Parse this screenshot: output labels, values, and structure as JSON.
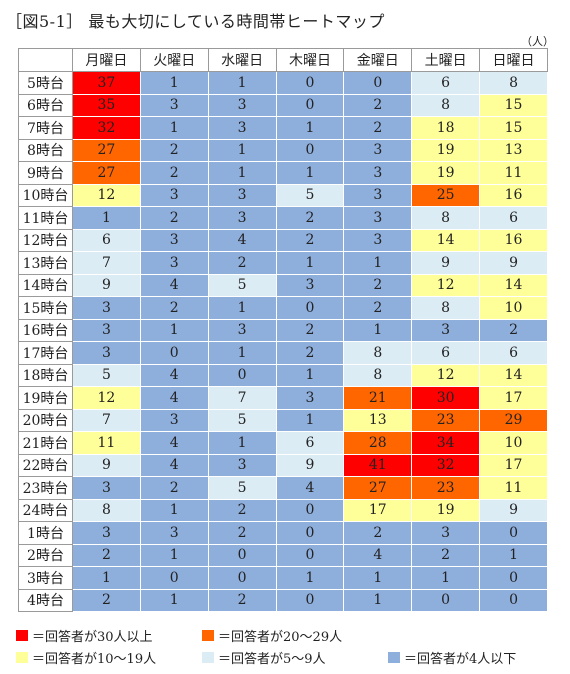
{
  "title": "［図5-1］ 最も大切にしている時間帯ヒートマップ",
  "unit": "（人）",
  "colors": {
    "red": "#ff0000",
    "orange": "#ff6600",
    "yellow": "#ffff99",
    "lightblue": "#dcecf4",
    "blue": "#8eaedc"
  },
  "chart_data": {
    "type": "heatmap",
    "columns": [
      "月曜日",
      "火曜日",
      "水曜日",
      "木曜日",
      "金曜日",
      "土曜日",
      "日曜日"
    ],
    "rows": [
      "5時台",
      "6時台",
      "7時台",
      "8時台",
      "9時台",
      "10時台",
      "11時台",
      "12時台",
      "13時台",
      "14時台",
      "15時台",
      "16時台",
      "17時台",
      "18時台",
      "19時台",
      "20時台",
      "21時台",
      "22時台",
      "23時台",
      "24時台",
      "1時台",
      "2時台",
      "3時台",
      "4時台"
    ],
    "values": [
      [
        37,
        1,
        1,
        0,
        0,
        6,
        8
      ],
      [
        35,
        3,
        3,
        0,
        2,
        8,
        15
      ],
      [
        32,
        1,
        3,
        1,
        2,
        18,
        15
      ],
      [
        27,
        2,
        1,
        0,
        3,
        19,
        13
      ],
      [
        27,
        2,
        1,
        1,
        3,
        19,
        11
      ],
      [
        12,
        3,
        3,
        5,
        3,
        25,
        16
      ],
      [
        1,
        2,
        3,
        2,
        3,
        8,
        6
      ],
      [
        6,
        3,
        4,
        2,
        3,
        14,
        16
      ],
      [
        7,
        3,
        2,
        1,
        1,
        9,
        9
      ],
      [
        9,
        4,
        5,
        3,
        2,
        12,
        14
      ],
      [
        3,
        2,
        1,
        0,
        2,
        8,
        10
      ],
      [
        3,
        1,
        3,
        2,
        1,
        3,
        2
      ],
      [
        3,
        0,
        1,
        2,
        8,
        6,
        6
      ],
      [
        5,
        4,
        0,
        1,
        8,
        12,
        14
      ],
      [
        12,
        4,
        7,
        3,
        21,
        30,
        17
      ],
      [
        7,
        3,
        5,
        1,
        13,
        23,
        29
      ],
      [
        11,
        4,
        1,
        6,
        28,
        34,
        10
      ],
      [
        9,
        4,
        3,
        9,
        41,
        32,
        17
      ],
      [
        3,
        2,
        5,
        4,
        27,
        23,
        11
      ],
      [
        8,
        1,
        2,
        0,
        17,
        19,
        9
      ],
      [
        3,
        3,
        2,
        0,
        2,
        3,
        0
      ],
      [
        2,
        1,
        0,
        0,
        4,
        2,
        1
      ],
      [
        1,
        0,
        0,
        1,
        1,
        1,
        0
      ],
      [
        2,
        1,
        2,
        0,
        1,
        0,
        0
      ]
    ],
    "thresholds": [
      {
        "min": 30,
        "color": "red"
      },
      {
        "min": 20,
        "color": "orange"
      },
      {
        "min": 10,
        "color": "yellow"
      },
      {
        "min": 5,
        "color": "lightblue"
      },
      {
        "min": 0,
        "color": "blue"
      }
    ],
    "legend": [
      {
        "color": "red",
        "label": "＝回答者が30人以上"
      },
      {
        "color": "orange",
        "label": "＝回答者が20～29人"
      },
      {
        "color": "yellow",
        "label": "＝回答者が10～19人"
      },
      {
        "color": "lightblue",
        "label": "＝回答者が5～9人"
      },
      {
        "color": "blue",
        "label": "＝回答者が4人以下"
      }
    ]
  }
}
